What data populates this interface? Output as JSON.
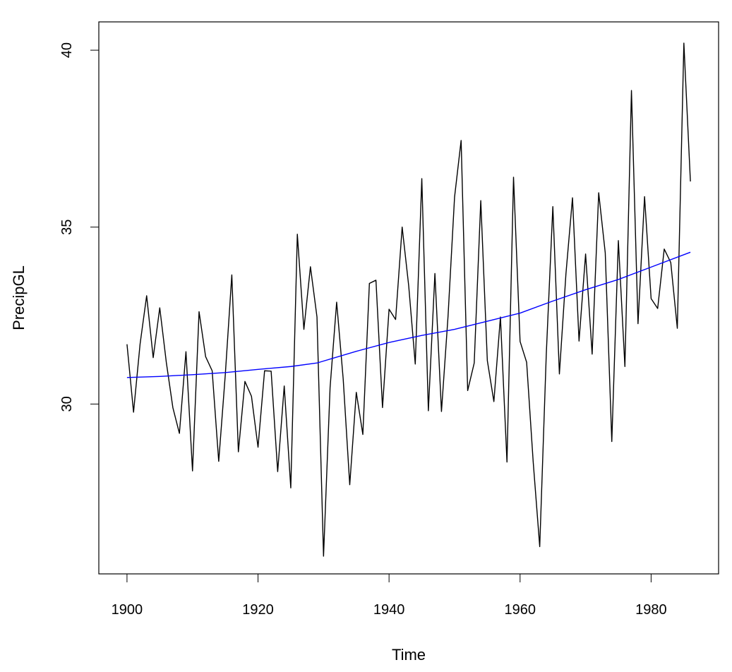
{
  "chart_data": {
    "type": "line",
    "title": "",
    "xlabel": "Time",
    "ylabel": "PrecipGL",
    "xlim": [
      1895.7,
      1990.3
    ],
    "ylim": [
      25.2,
      40.8
    ],
    "x_ticks": [
      1900,
      1920,
      1940,
      1960,
      1980
    ],
    "y_ticks": [
      30,
      35,
      40
    ],
    "grid": false,
    "legend": "none",
    "series": [
      {
        "color": "#000000",
        "x": [
          1900,
          1901,
          1902,
          1903,
          1904,
          1905,
          1906,
          1907,
          1908,
          1909,
          1910,
          1911,
          1912,
          1913,
          1914,
          1915,
          1916,
          1917,
          1918,
          1919,
          1920,
          1921,
          1922,
          1923,
          1924,
          1925,
          1926,
          1927,
          1928,
          1929,
          1930,
          1931,
          1932,
          1933,
          1934,
          1935,
          1936,
          1937,
          1938,
          1939,
          1940,
          1941,
          1942,
          1943,
          1944,
          1945,
          1946,
          1947,
          1948,
          1949,
          1950,
          1951,
          1952,
          1953,
          1954,
          1955,
          1956,
          1957,
          1958,
          1959,
          1960,
          1961,
          1962,
          1963,
          1964,
          1965,
          1966,
          1967,
          1968,
          1969,
          1970,
          1971,
          1972,
          1973,
          1974,
          1975,
          1976,
          1977,
          1978,
          1979,
          1980,
          1981,
          1982,
          1983,
          1984,
          1985,
          1986
        ],
        "values": [
          31.69,
          29.77,
          31.7,
          33.06,
          31.31,
          32.72,
          31.18,
          29.9,
          29.17,
          31.48,
          28.11,
          32.61,
          31.34,
          30.94,
          28.38,
          30.82,
          33.65,
          28.65,
          30.64,
          30.22,
          28.78,
          30.94,
          30.93,
          28.09,
          30.51,
          27.63,
          34.8,
          32.11,
          33.88,
          32.46,
          25.7,
          30.47,
          32.88,
          30.71,
          27.72,
          30.33,
          29.14,
          33.41,
          33.5,
          29.9,
          32.68,
          32.39,
          35.0,
          33.34,
          31.13,
          36.37,
          29.81,
          33.69,
          29.79,
          32.47,
          35.85,
          37.45,
          30.38,
          31.16,
          35.75,
          31.23,
          30.07,
          32.46,
          28.36,
          36.41,
          31.77,
          31.18,
          28.37,
          25.97,
          31.41,
          35.58,
          30.85,
          33.68,
          35.83,
          31.78,
          34.24,
          31.41,
          35.97,
          34.27,
          28.94,
          34.62,
          31.06,
          38.86,
          32.27,
          35.86,
          32.98,
          32.7,
          34.38,
          34.0,
          32.14,
          40.2,
          36.29
        ]
      },
      {
        "color": "#0000ff",
        "x": [
          1900,
          1905,
          1910,
          1915,
          1920,
          1925,
          1929,
          1935,
          1940,
          1945,
          1950,
          1955,
          1960,
          1965,
          1970,
          1975,
          1980,
          1986
        ],
        "values": [
          30.75,
          30.78,
          30.83,
          30.89,
          30.98,
          31.06,
          31.16,
          31.49,
          31.74,
          31.94,
          32.11,
          32.34,
          32.57,
          32.91,
          33.23,
          33.52,
          33.87,
          34.29
        ]
      }
    ]
  }
}
